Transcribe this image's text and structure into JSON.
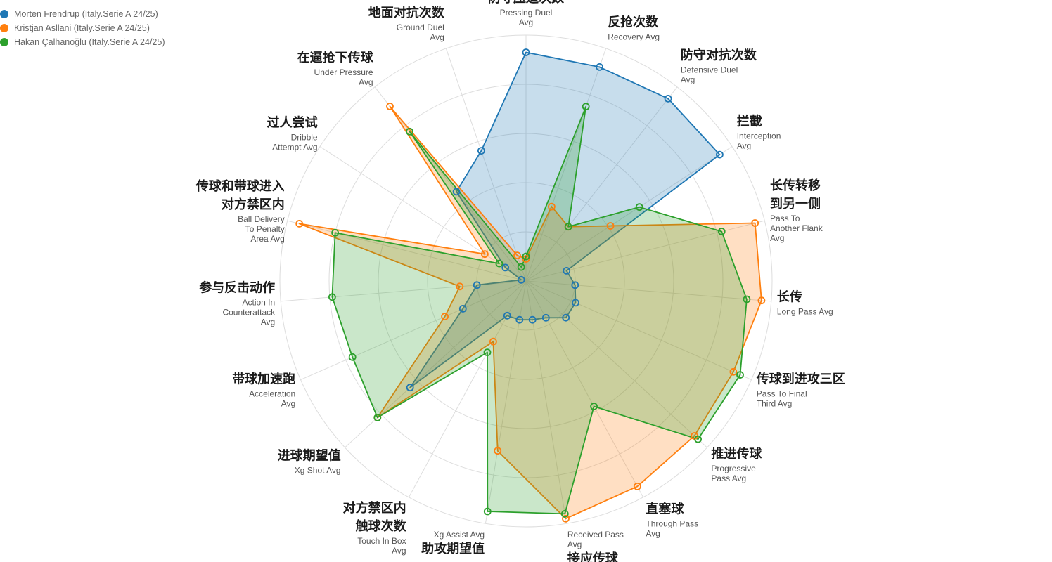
{
  "chart_data": {
    "type": "radar",
    "axes": [
      {
        "cn": [
          "防守压迫次数"
        ],
        "en": [
          "Pressing Duel",
          "Avg"
        ]
      },
      {
        "cn": [
          "反抢次数"
        ],
        "en": [
          "Recovery Avg"
        ]
      },
      {
        "cn": [
          "防守对抗次数"
        ],
        "en": [
          "Defensive Duel",
          "Avg"
        ]
      },
      {
        "cn": [
          "拦截"
        ],
        "en": [
          "Interception",
          "Avg"
        ]
      },
      {
        "cn": [
          "长传转移",
          "到另一侧"
        ],
        "en": [
          "Pass To",
          "Another Flank",
          "Avg"
        ]
      },
      {
        "cn": [
          "长传"
        ],
        "en": [
          "Long Pass Avg"
        ]
      },
      {
        "cn": [
          "传球到进攻三区"
        ],
        "en": [
          "Pass To Final",
          "Third Avg"
        ]
      },
      {
        "cn": [
          "推进传球"
        ],
        "en": [
          "Progressive",
          "Pass Avg"
        ]
      },
      {
        "cn": [
          "直塞球"
        ],
        "en": [
          "Through Pass",
          "Avg"
        ]
      },
      {
        "cn": [
          "接应传球"
        ],
        "en": [
          "Received Pass",
          "Avg"
        ]
      },
      {
        "cn": [
          "助攻期望值"
        ],
        "en": [
          "Xg Assist Avg"
        ]
      },
      {
        "cn": [
          "对方禁区内",
          "触球次数"
        ],
        "en": [
          "Touch In Box",
          "Avg"
        ]
      },
      {
        "cn": [
          "进球期望值"
        ],
        "en": [
          "Xg Shot Avg"
        ]
      },
      {
        "cn": [
          "带球加速跑"
        ],
        "en": [
          "Acceleration",
          "Avg"
        ]
      },
      {
        "cn": [
          "参与反击动作"
        ],
        "en": [
          "Action In",
          "Counterattack",
          "Avg"
        ]
      },
      {
        "cn": [
          "传球和带球进入",
          "对方禁区内"
        ],
        "en": [
          "Ball Delivery",
          "To Penalty",
          "Area Avg"
        ]
      },
      {
        "cn": [
          "过人尝试"
        ],
        "en": [
          "Dribble",
          "Attempt Avg"
        ]
      },
      {
        "cn": [
          "在逼抢下传球"
        ],
        "en": [
          "Under Pressure",
          "Avg"
        ]
      },
      {
        "cn": [
          "地面对抗次数"
        ],
        "en": [
          "Ground Duel",
          "Avg"
        ]
      }
    ],
    "rmax": 100,
    "grid_levels": 5,
    "grid": true,
    "legend_position": "top-left",
    "series": [
      {
        "name": "Morten Frendrup (Italy.Serie A 24/25)",
        "color": "#1f77b4",
        "fill": "rgba(31,119,180,0.25)",
        "values": [
          93,
          92,
          94,
          94,
          17,
          20,
          22,
          22,
          17,
          16,
          16,
          16,
          64,
          28,
          20,
          2,
          10,
          46,
          56
        ]
      },
      {
        "name": "Kristjan Asllani (Italy.Serie A 24/25)",
        "color": "#ff7f0e",
        "fill": "rgba(255,127,14,0.25)",
        "values": [
          9,
          32,
          28,
          41,
          96,
          96,
          92,
          93,
          95,
          98,
          70,
          28,
          82,
          36,
          27,
          95,
          20,
          90,
          11
        ]
      },
      {
        "name": "Hakan Çalhanoğlu (Italy.Serie A 24/25)",
        "color": "#2ca02c",
        "fill": "rgba(44,160,44,0.25)",
        "values": [
          10,
          75,
          28,
          55,
          82,
          90,
          95,
          95,
          58,
          96,
          95,
          33,
          82,
          77,
          79,
          80,
          13,
          77,
          6
        ]
      }
    ]
  }
}
